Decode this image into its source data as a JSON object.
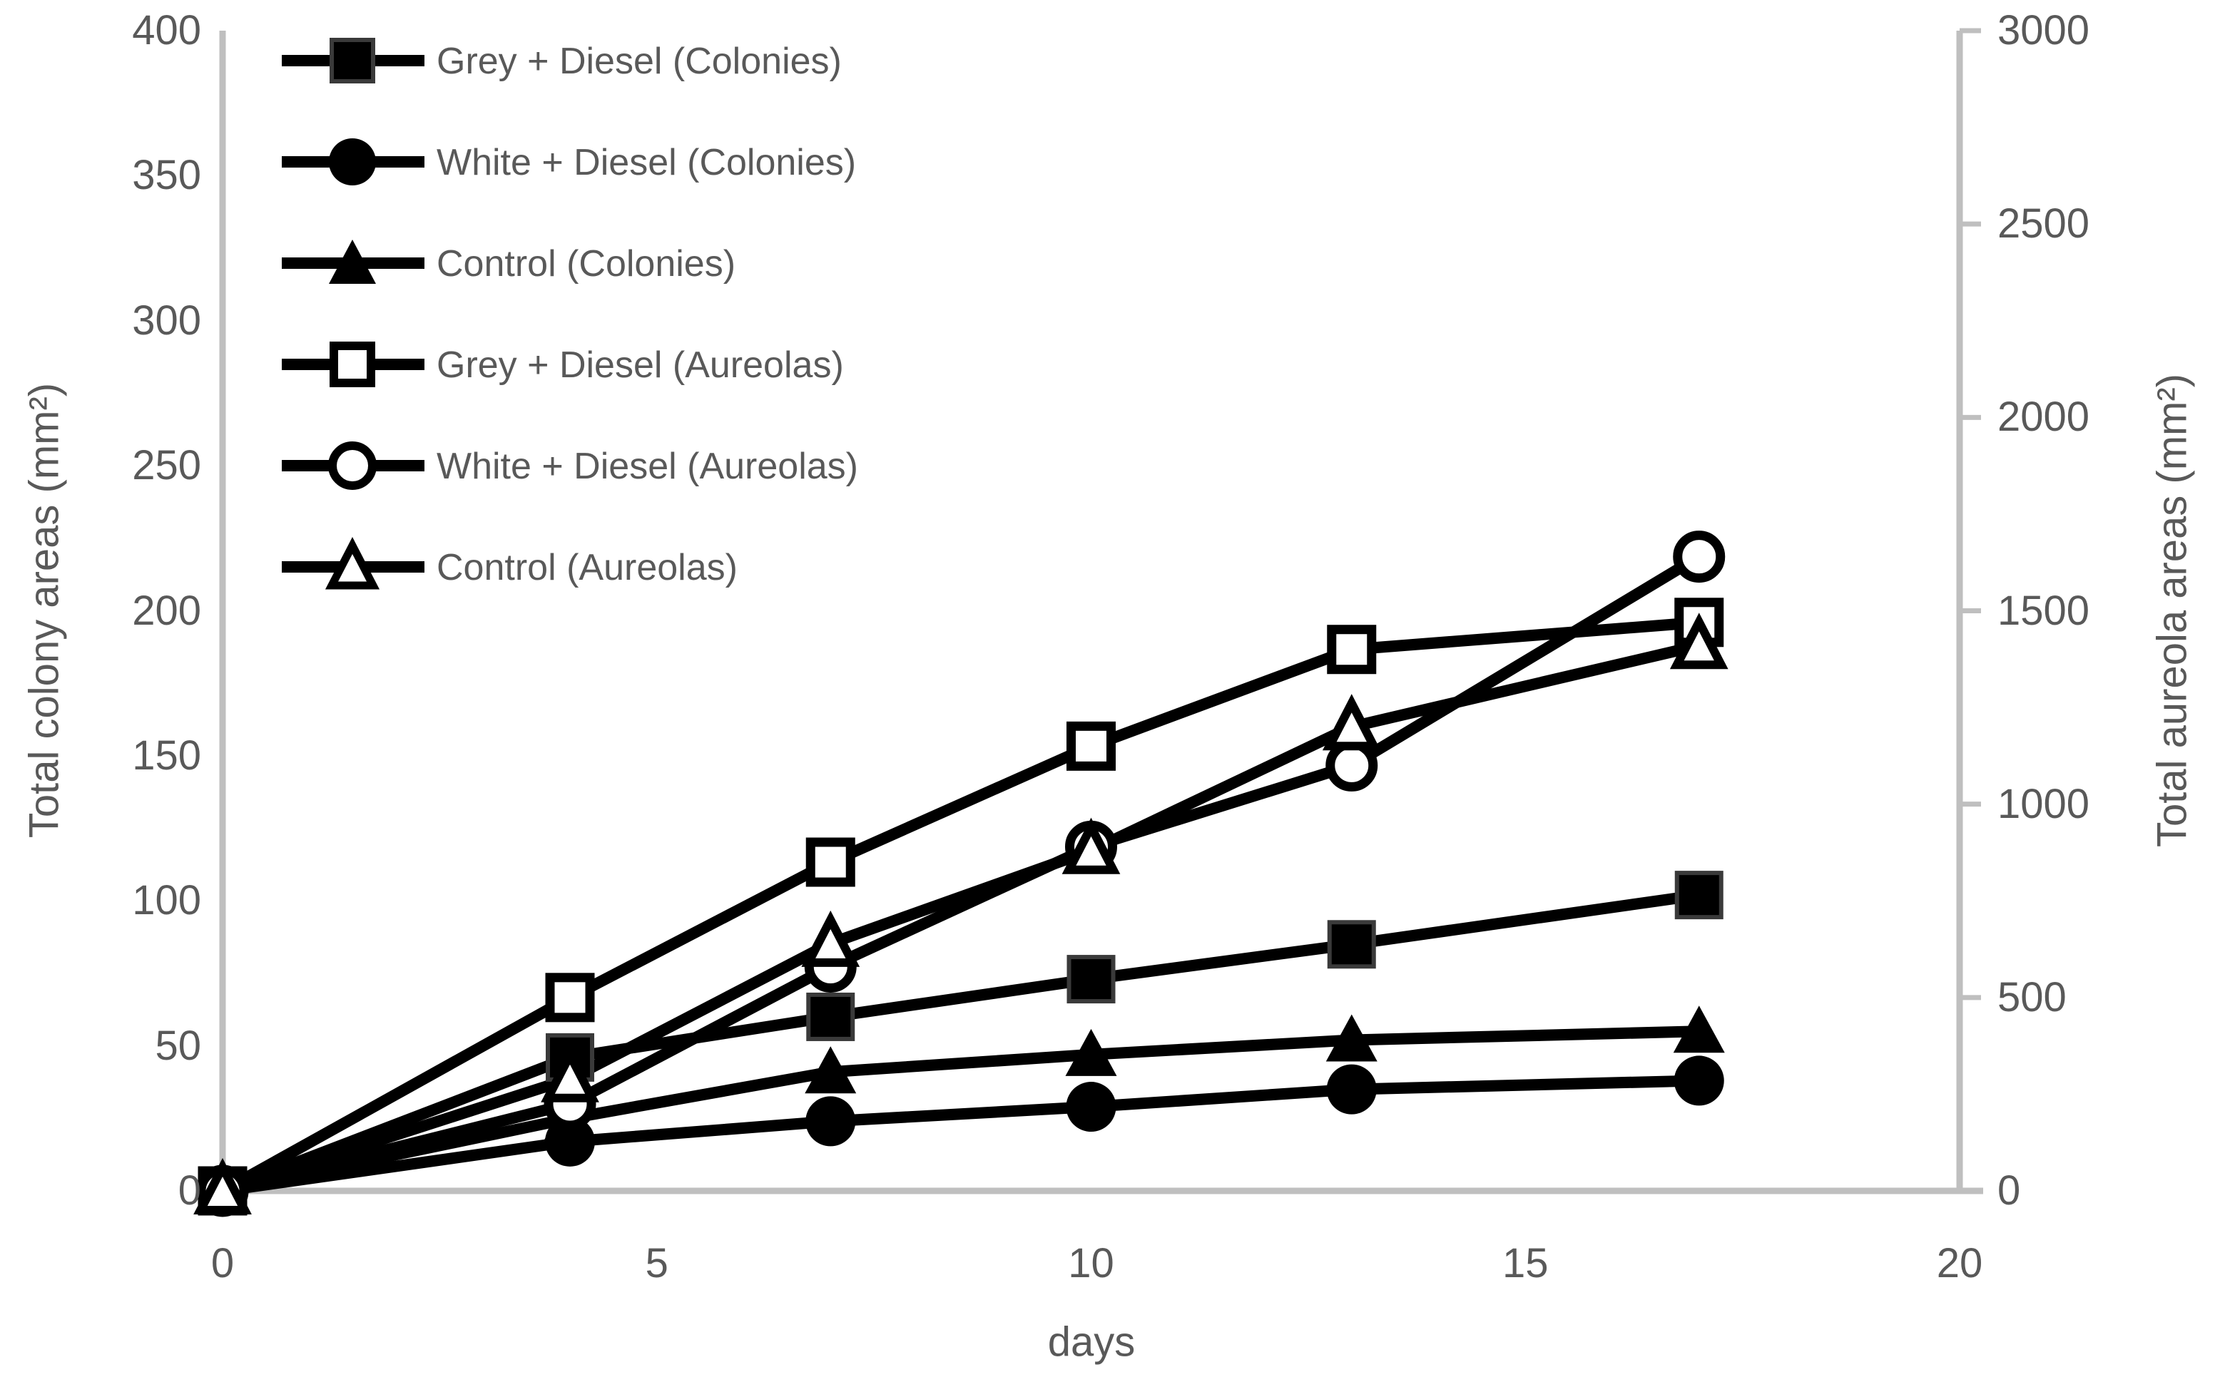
{
  "chart_data": {
    "type": "line",
    "title": "",
    "x": [
      0,
      4,
      7,
      10,
      13,
      17
    ],
    "xlabel": "days",
    "x_axis": {
      "ticks": [
        0,
        5,
        10,
        15,
        20
      ],
      "range": [
        0,
        20
      ]
    },
    "left_axis": {
      "label": "Total colony areas (mm²)",
      "ticks": [
        0,
        50,
        100,
        150,
        200,
        250,
        300,
        350,
        400
      ],
      "range": [
        0,
        400
      ]
    },
    "right_axis": {
      "label": "Total aureola areas (mm²)",
      "ticks": [
        0,
        500,
        1000,
        1500,
        2000,
        2500,
        3000
      ],
      "range": [
        0,
        3000
      ]
    },
    "series": [
      {
        "name": "Grey + Diesel (Colonies)",
        "axis": "left",
        "marker": "square",
        "fill": "filled",
        "values": [
          0,
          46,
          60,
          73,
          85,
          102
        ]
      },
      {
        "name": "White + Diesel (Colonies)",
        "axis": "left",
        "marker": "circle",
        "fill": "filled",
        "values": [
          0,
          17,
          24,
          29,
          35,
          38
        ]
      },
      {
        "name": "Control (Colonies)",
        "axis": "left",
        "marker": "triangle",
        "fill": "filled",
        "values": [
          0,
          25,
          41,
          47,
          52,
          55
        ]
      },
      {
        "name": "Grey + Diesel (Aureolas)",
        "axis": "right",
        "marker": "square",
        "fill": "open",
        "values": [
          0,
          500,
          850,
          1150,
          1400,
          1470
        ]
      },
      {
        "name": "White + Diesel (Aureolas)",
        "axis": "right",
        "marker": "circle",
        "fill": "open",
        "values": [
          0,
          225,
          580,
          890,
          1100,
          1640
        ]
      },
      {
        "name": "Control (Aureolas)",
        "axis": "right",
        "marker": "triangle",
        "fill": "open",
        "values": [
          0,
          290,
          640,
          880,
          1200,
          1410
        ]
      }
    ],
    "legend_position": "top-left",
    "grid": false,
    "colors": {
      "series": "#000000",
      "axis_line": "#BFBFBF",
      "tick_text": "#595959"
    }
  }
}
